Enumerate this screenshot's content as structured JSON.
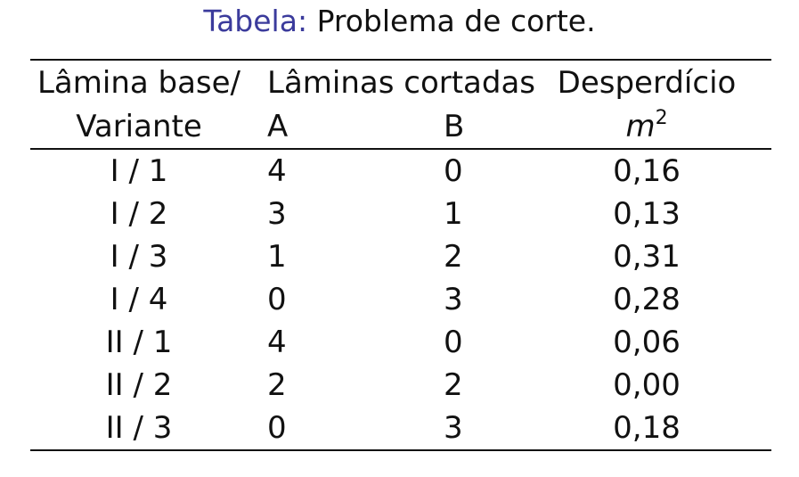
{
  "caption": {
    "label": "Tabela:",
    "text": "Problema de corte."
  },
  "header": {
    "col1_line1": "Lâmina base/",
    "col1_line2": "Variante",
    "cut_group": "Lâminas cortadas",
    "cut_a": "A",
    "cut_b": "B",
    "waste_line1": "Desperdício",
    "waste_unit_base": "m",
    "waste_unit_exp": "2"
  },
  "rows": [
    {
      "variant": "I / 1",
      "a": "4",
      "b": "0",
      "waste": "0,16"
    },
    {
      "variant": "I / 2",
      "a": "3",
      "b": "1",
      "waste": "0,13"
    },
    {
      "variant": "I / 3",
      "a": "1",
      "b": "2",
      "waste": "0,31"
    },
    {
      "variant": "I / 4",
      "a": "0",
      "b": "3",
      "waste": "0,28"
    },
    {
      "variant": "II / 1",
      "a": "4",
      "b": "0",
      "waste": "0,06"
    },
    {
      "variant": "II / 2",
      "a": "2",
      "b": "2",
      "waste": "0,00"
    },
    {
      "variant": "II / 3",
      "a": "0",
      "b": "3",
      "waste": "0,18"
    }
  ]
}
